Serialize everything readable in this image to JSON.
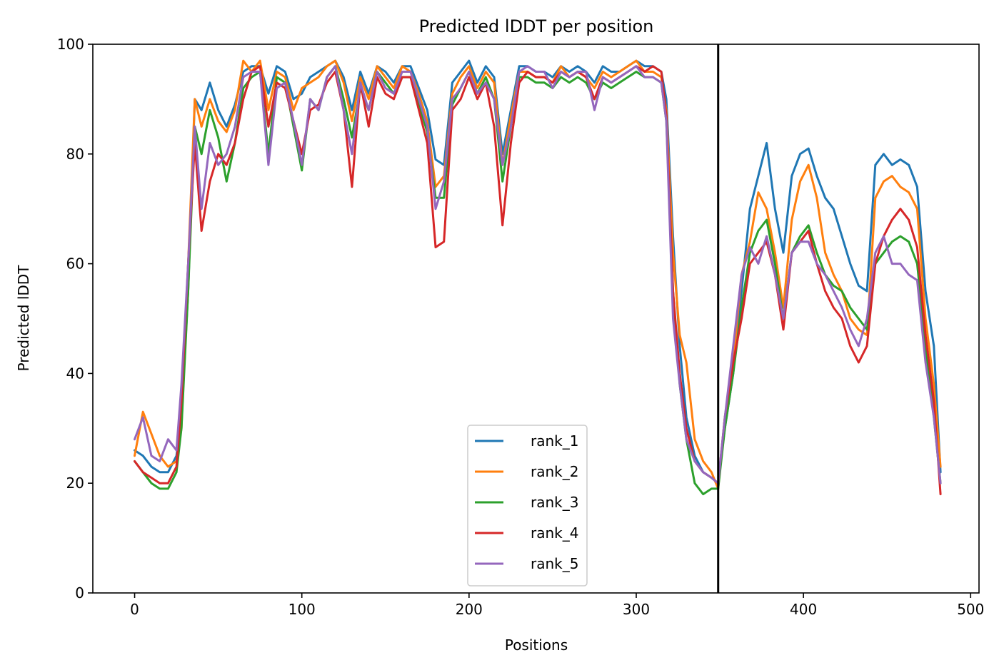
{
  "chart_data": {
    "type": "line",
    "title": "Predicted lDDT per position",
    "xlabel": "Positions",
    "ylabel": "Predicted lDDT",
    "xlim": [
      -25,
      505
    ],
    "ylim": [
      0,
      100
    ],
    "xticks": [
      0,
      100,
      200,
      300,
      400,
      500
    ],
    "yticks": [
      0,
      20,
      40,
      60,
      80,
      100
    ],
    "grid": false,
    "legend_position": "lower center",
    "vertical_line": {
      "x": 349,
      "color": "#000000"
    },
    "series": [
      {
        "name": "rank_1",
        "color": "#1f77b4",
        "x": [
          0,
          5,
          10,
          15,
          20,
          25,
          28,
          32,
          36,
          40,
          45,
          50,
          55,
          60,
          65,
          70,
          75,
          80,
          85,
          90,
          95,
          100,
          105,
          110,
          115,
          120,
          125,
          130,
          135,
          140,
          145,
          150,
          155,
          160,
          165,
          170,
          175,
          180,
          185,
          190,
          195,
          200,
          205,
          210,
          215,
          220,
          225,
          230,
          235,
          240,
          245,
          250,
          255,
          260,
          265,
          270,
          275,
          280,
          285,
          290,
          295,
          300,
          305,
          310,
          315,
          318,
          322,
          326,
          330,
          335,
          340,
          345,
          349,
          353,
          358,
          363,
          368,
          373,
          378,
          383,
          388,
          393,
          398,
          403,
          408,
          413,
          418,
          423,
          428,
          433,
          438,
          443,
          448,
          453,
          458,
          463,
          468,
          473,
          478,
          482
        ],
        "y": [
          26,
          25,
          23,
          22,
          22,
          25,
          32,
          55,
          90,
          88,
          93,
          88,
          85,
          89,
          95,
          96,
          96,
          91,
          96,
          95,
          90,
          91,
          94,
          95,
          96,
          97,
          94,
          88,
          95,
          91,
          96,
          95,
          93,
          96,
          96,
          92,
          88,
          79,
          78,
          93,
          95,
          97,
          93,
          96,
          94,
          80,
          88,
          96,
          96,
          95,
          95,
          94,
          96,
          95,
          96,
          95,
          93,
          96,
          95,
          95,
          96,
          97,
          96,
          96,
          95,
          90,
          65,
          45,
          32,
          25,
          22,
          21,
          20,
          30,
          40,
          55,
          70,
          76,
          82,
          70,
          62,
          76,
          80,
          81,
          76,
          72,
          70,
          65,
          60,
          56,
          55,
          78,
          80,
          78,
          79,
          78,
          74,
          55,
          45,
          22
        ]
      },
      {
        "name": "rank_2",
        "color": "#ff7f0e",
        "x": [
          0,
          5,
          10,
          15,
          20,
          25,
          28,
          32,
          36,
          40,
          45,
          50,
          55,
          60,
          65,
          70,
          75,
          80,
          85,
          90,
          95,
          100,
          105,
          110,
          115,
          120,
          125,
          130,
          135,
          140,
          145,
          150,
          155,
          160,
          165,
          170,
          175,
          180,
          185,
          190,
          195,
          200,
          205,
          210,
          215,
          220,
          225,
          230,
          235,
          240,
          245,
          250,
          255,
          260,
          265,
          270,
          275,
          280,
          285,
          290,
          295,
          300,
          305,
          310,
          315,
          318,
          322,
          326,
          330,
          335,
          340,
          345,
          349,
          353,
          358,
          363,
          368,
          373,
          378,
          383,
          388,
          393,
          398,
          403,
          408,
          413,
          418,
          423,
          428,
          433,
          438,
          443,
          448,
          453,
          458,
          463,
          468,
          473,
          478,
          482
        ],
        "y": [
          25,
          33,
          29,
          25,
          23,
          24,
          30,
          60,
          90,
          85,
          90,
          86,
          84,
          88,
          97,
          95,
          97,
          88,
          95,
          94,
          88,
          92,
          93,
          94,
          96,
          97,
          93,
          86,
          94,
          90,
          96,
          94,
          92,
          96,
          95,
          91,
          86,
          74,
          76,
          91,
          94,
          96,
          92,
          95,
          93,
          78,
          87,
          95,
          95,
          94,
          94,
          93,
          96,
          94,
          95,
          94,
          92,
          95,
          94,
          95,
          96,
          97,
          95,
          95,
          94,
          88,
          62,
          47,
          42,
          28,
          24,
          22,
          19,
          32,
          42,
          58,
          64,
          73,
          70,
          62,
          52,
          68,
          75,
          78,
          72,
          62,
          58,
          55,
          50,
          48,
          47,
          72,
          75,
          76,
          74,
          73,
          70,
          50,
          38,
          23
        ]
      },
      {
        "name": "rank_3",
        "color": "#2ca02c",
        "x": [
          0,
          5,
          10,
          15,
          20,
          25,
          28,
          32,
          36,
          40,
          45,
          50,
          55,
          60,
          65,
          70,
          75,
          80,
          85,
          90,
          95,
          100,
          105,
          110,
          115,
          120,
          125,
          130,
          135,
          140,
          145,
          150,
          155,
          160,
          165,
          170,
          175,
          180,
          185,
          190,
          195,
          200,
          205,
          210,
          215,
          220,
          225,
          230,
          235,
          240,
          245,
          250,
          255,
          260,
          265,
          270,
          275,
          280,
          285,
          290,
          295,
          300,
          305,
          310,
          315,
          318,
          322,
          326,
          330,
          335,
          340,
          345,
          349,
          353,
          358,
          363,
          368,
          373,
          378,
          383,
          388,
          393,
          398,
          403,
          408,
          413,
          418,
          423,
          428,
          433,
          438,
          443,
          448,
          453,
          458,
          463,
          468,
          473,
          478,
          482
        ],
        "y": [
          24,
          22,
          20,
          19,
          19,
          22,
          30,
          55,
          85,
          80,
          88,
          83,
          75,
          82,
          92,
          94,
          95,
          80,
          94,
          93,
          85,
          77,
          90,
          88,
          94,
          96,
          90,
          83,
          92,
          88,
          95,
          93,
          91,
          94,
          94,
          89,
          84,
          72,
          72,
          89,
          92,
          95,
          91,
          94,
          90,
          75,
          85,
          94,
          94,
          93,
          93,
          92,
          94,
          93,
          94,
          93,
          90,
          93,
          92,
          93,
          94,
          95,
          94,
          94,
          93,
          86,
          55,
          38,
          28,
          20,
          18,
          19,
          19,
          30,
          40,
          52,
          62,
          66,
          68,
          60,
          50,
          62,
          65,
          67,
          62,
          58,
          56,
          55,
          52,
          50,
          48,
          60,
          62,
          64,
          65,
          64,
          60,
          45,
          32,
          20
        ]
      },
      {
        "name": "rank_4",
        "color": "#d62728",
        "x": [
          0,
          5,
          10,
          15,
          20,
          25,
          28,
          32,
          36,
          40,
          45,
          50,
          55,
          60,
          65,
          70,
          75,
          80,
          85,
          90,
          95,
          100,
          105,
          110,
          115,
          120,
          125,
          130,
          135,
          140,
          145,
          150,
          155,
          160,
          165,
          170,
          175,
          180,
          185,
          190,
          195,
          200,
          205,
          210,
          215,
          220,
          225,
          230,
          235,
          240,
          245,
          250,
          255,
          260,
          265,
          270,
          275,
          280,
          285,
          290,
          295,
          300,
          305,
          310,
          315,
          318,
          322,
          326,
          330,
          335,
          340,
          345,
          349,
          353,
          358,
          363,
          368,
          373,
          378,
          383,
          388,
          393,
          398,
          403,
          408,
          413,
          418,
          423,
          428,
          433,
          438,
          443,
          448,
          453,
          458,
          463,
          468,
          473,
          478,
          482
        ],
        "y": [
          24,
          22,
          21,
          20,
          20,
          23,
          35,
          60,
          82,
          66,
          75,
          80,
          78,
          82,
          90,
          95,
          96,
          85,
          93,
          92,
          86,
          80,
          88,
          89,
          93,
          95,
          88,
          74,
          93,
          85,
          94,
          91,
          90,
          94,
          94,
          88,
          82,
          63,
          64,
          88,
          90,
          94,
          90,
          93,
          85,
          67,
          82,
          93,
          95,
          94,
          94,
          93,
          95,
          94,
          95,
          94,
          90,
          94,
          93,
          94,
          95,
          96,
          95,
          96,
          95,
          87,
          55,
          40,
          30,
          24,
          22,
          21,
          20,
          32,
          42,
          50,
          60,
          62,
          64,
          58,
          48,
          62,
          64,
          66,
          60,
          55,
          52,
          50,
          45,
          42,
          45,
          60,
          65,
          68,
          70,
          68,
          63,
          47,
          35,
          18
        ]
      },
      {
        "name": "rank_5",
        "color": "#9467bd",
        "x": [
          0,
          5,
          10,
          15,
          20,
          25,
          28,
          32,
          36,
          40,
          45,
          50,
          55,
          60,
          65,
          70,
          75,
          80,
          85,
          90,
          95,
          100,
          105,
          110,
          115,
          120,
          125,
          130,
          135,
          140,
          145,
          150,
          155,
          160,
          165,
          170,
          175,
          180,
          185,
          190,
          195,
          200,
          205,
          210,
          215,
          220,
          225,
          230,
          235,
          240,
          245,
          250,
          255,
          260,
          265,
          270,
          275,
          280,
          285,
          290,
          295,
          300,
          305,
          310,
          315,
          318,
          322,
          326,
          330,
          335,
          340,
          345,
          349,
          353,
          358,
          363,
          368,
          373,
          378,
          383,
          388,
          393,
          398,
          403,
          408,
          413,
          418,
          423,
          428,
          433,
          438,
          443,
          448,
          453,
          458,
          463,
          468,
          473,
          478,
          482
        ],
        "y": [
          28,
          32,
          25,
          24,
          28,
          26,
          38,
          60,
          85,
          70,
          82,
          78,
          80,
          85,
          94,
          95,
          95,
          78,
          92,
          93,
          86,
          78,
          90,
          88,
          94,
          96,
          88,
          80,
          93,
          88,
          95,
          92,
          91,
          95,
          95,
          90,
          85,
          70,
          75,
          90,
          92,
          95,
          91,
          93,
          90,
          78,
          85,
          95,
          96,
          95,
          95,
          92,
          95,
          94,
          95,
          95,
          88,
          94,
          93,
          94,
          95,
          96,
          94,
          94,
          93,
          86,
          50,
          38,
          28,
          24,
          22,
          21,
          20,
          32,
          45,
          58,
          63,
          60,
          65,
          58,
          50,
          62,
          64,
          64,
          60,
          58,
          55,
          52,
          48,
          45,
          50,
          62,
          65,
          60,
          60,
          58,
          57,
          42,
          32,
          20
        ]
      }
    ]
  }
}
